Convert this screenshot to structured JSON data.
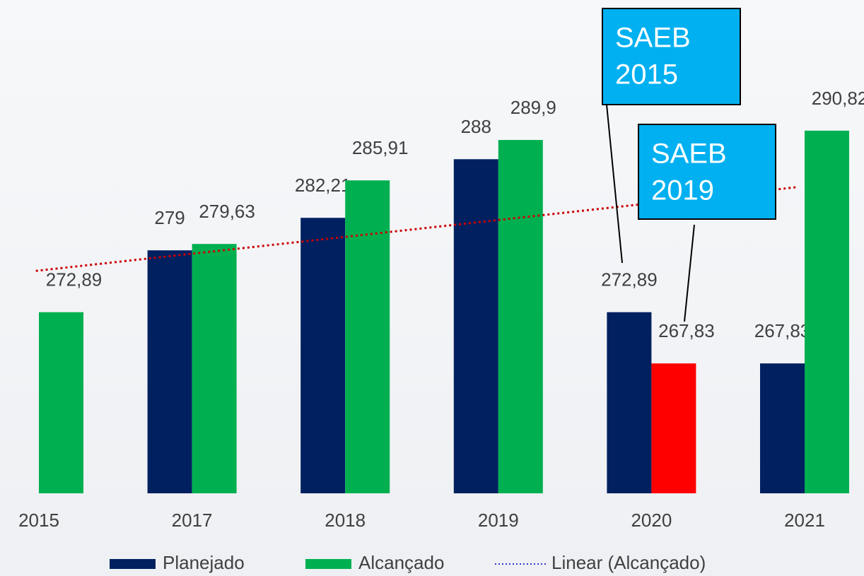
{
  "chart_data": {
    "type": "bar",
    "categories": [
      "2015",
      "2017",
      "2018",
      "2019",
      "2020",
      "2021"
    ],
    "series": [
      {
        "name": "Planejado",
        "color": "#002060",
        "values": [
          null,
          279,
          282.21,
          288,
          272.89,
          267.83
        ],
        "value_labels": [
          null,
          "279",
          "282,21",
          "288",
          "272,89",
          "267,83"
        ]
      },
      {
        "name": "Alcançado",
        "color": "#00b050",
        "values": [
          272.89,
          279.63,
          285.91,
          289.9,
          267.83,
          290.82
        ],
        "value_labels": [
          "272,89",
          "279,63",
          "285,91",
          "289,9",
          "267,83",
          "290,82"
        ],
        "highlight": {
          "index": 4,
          "color": "#ff0000"
        }
      }
    ],
    "trendline": {
      "name": "Linear (Alcançado)",
      "type": "linear",
      "series": 1,
      "color": "#cc0000",
      "legend_color": "#3333cc"
    },
    "annotations": [
      {
        "lines": [
          "SAEB",
          "2015"
        ]
      },
      {
        "lines": [
          "SAEB",
          "2019"
        ]
      }
    ],
    "annotation_color": "#00b0f0",
    "ylim": [
      255,
      295
    ],
    "legend": "bottom"
  }
}
